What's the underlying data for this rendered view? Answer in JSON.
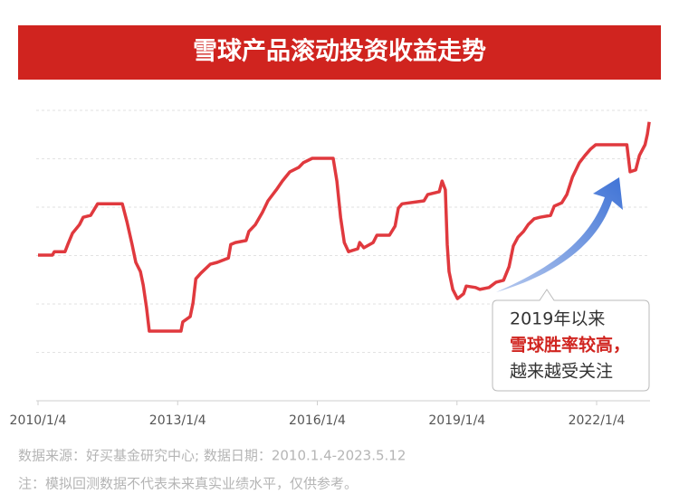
{
  "chart_data": {
    "type": "line",
    "title": "雪球产品滚动投资收益走势",
    "x": [
      2010.0,
      2010.31,
      2010.35,
      2010.58,
      2010.64,
      2010.74,
      2010.89,
      2010.97,
      2011.13,
      2011.28,
      2011.81,
      2011.91,
      2012.02,
      2012.1,
      2012.2,
      2012.26,
      2012.33,
      2012.39,
      2013.07,
      2013.11,
      2013.27,
      2013.33,
      2013.39,
      2013.5,
      2013.7,
      2013.85,
      2014.09,
      2014.14,
      2014.24,
      2014.47,
      2014.53,
      2014.67,
      2014.82,
      2014.94,
      2015.12,
      2015.25,
      2015.41,
      2015.6,
      2015.7,
      2015.89,
      2016.34,
      2016.42,
      2016.5,
      2016.58,
      2016.67,
      2016.87,
      2016.91,
      2017.0,
      2017.2,
      2017.28,
      2017.55,
      2017.67,
      2017.74,
      2017.82,
      2018.29,
      2018.37,
      2018.62,
      2018.68,
      2018.75,
      2018.79,
      2018.83,
      2018.91,
      2019.01,
      2019.14,
      2019.2,
      2019.4,
      2019.49,
      2019.69,
      2019.84,
      2020.0,
      2020.12,
      2020.21,
      2020.31,
      2020.43,
      2020.53,
      2020.66,
      2020.78,
      2021.01,
      2021.09,
      2021.25,
      2021.36,
      2021.48,
      2021.63,
      2021.75,
      2021.87,
      2021.98,
      2022.65,
      2022.72,
      2022.84,
      2022.92,
      2023.04,
      2023.09,
      2023.13
    ],
    "values": [
      3.01,
      3.01,
      3.08,
      3.08,
      3.23,
      3.46,
      3.64,
      3.79,
      3.83,
      4.07,
      4.07,
      3.7,
      3.23,
      2.86,
      2.67,
      2.39,
      1.93,
      1.44,
      1.44,
      1.63,
      1.74,
      2.02,
      2.52,
      2.64,
      2.82,
      2.86,
      2.95,
      3.23,
      3.27,
      3.31,
      3.5,
      3.64,
      3.89,
      4.13,
      4.36,
      4.54,
      4.73,
      4.82,
      4.92,
      5.01,
      5.01,
      4.54,
      3.79,
      3.27,
      3.08,
      3.14,
      3.27,
      3.16,
      3.27,
      3.42,
      3.42,
      3.61,
      3.98,
      4.07,
      4.13,
      4.26,
      4.32,
      4.54,
      4.36,
      3.23,
      2.67,
      2.3,
      2.11,
      2.21,
      2.37,
      2.34,
      2.3,
      2.34,
      2.45,
      2.49,
      2.77,
      3.2,
      3.38,
      3.5,
      3.64,
      3.76,
      3.79,
      3.83,
      4.02,
      4.09,
      4.26,
      4.62,
      4.92,
      5.07,
      5.2,
      5.29,
      5.29,
      4.73,
      4.77,
      5.07,
      5.29,
      5.51,
      5.76
    ],
    "color": "#e0393e",
    "xlim": [
      2010,
      2023.4
    ],
    "xticks": [
      {
        "value": 2010,
        "label": "2010/1/4"
      },
      {
        "value": 2013,
        "label": "2013/1/4"
      },
      {
        "value": 2016,
        "label": "2016/1/4"
      },
      {
        "value": 2019,
        "label": "2019/1/4"
      },
      {
        "value": 2022,
        "label": "2022/1/4"
      }
    ],
    "ylim": [
      0,
      6
    ],
    "yticks": [
      1,
      2,
      3,
      4,
      5,
      6
    ],
    "grid": true,
    "annotation": [
      "2019年以来",
      "雪球胜率较高，",
      "越来越受关注"
    ],
    "source": "数据来源：好买基金研究中心; 数据日期：2010.1.4-2023.5.12",
    "note": "注：模拟回测数据不代表未来真实业绩水平，仅供参考。"
  }
}
